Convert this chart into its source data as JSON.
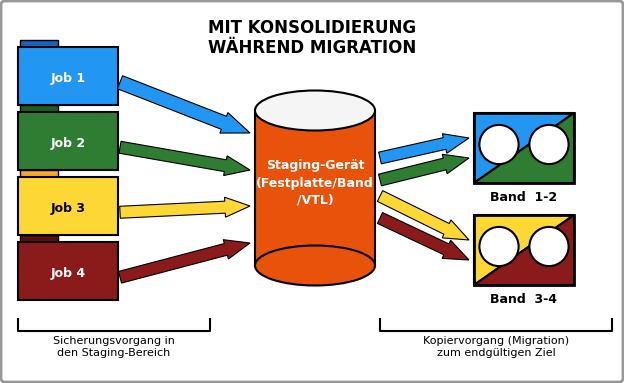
{
  "title_line1": "MIT KONSOLIDIERUNG",
  "title_line2": "WÄHREND MIGRATION",
  "jobs": [
    {
      "label": "Job 1",
      "color": "#2196F3",
      "tab_color": "#1565C0"
    },
    {
      "label": "Job 2",
      "color": "#2E7D32",
      "tab_color": "#1B5E20"
    },
    {
      "label": "Job 3",
      "color": "#FDD835",
      "tab_color": "#F9A825"
    },
    {
      "label": "Job 4",
      "color": "#8B1A1A",
      "tab_color": "#5C0F0F"
    }
  ],
  "arrow_colors": [
    "#2196F3",
    "#2E7D32",
    "#FDD835",
    "#8B1A1A"
  ],
  "staging_color": "#E8520A",
  "staging_label": "Staging-Gerät\n(Festplatte/Band\n/VTL)",
  "band12_colors": [
    "#2196F3",
    "#2E7D32"
  ],
  "band34_colors": [
    "#FDD835",
    "#8B1A1A"
  ],
  "band12_label": "Band  1-2",
  "band34_label": "Band  3-4",
  "label_left": "Sicherungsvorgang in\nden Staging-Bereich",
  "label_right": "Kopiervorgang (Migration)\nzum endgültigen Ziel",
  "bg_color": "#FFFFFF",
  "border_color": "#999999",
  "text_color_white": "#FFFFFF",
  "text_color_black": "#000000",
  "job3_text_color": "#000000"
}
